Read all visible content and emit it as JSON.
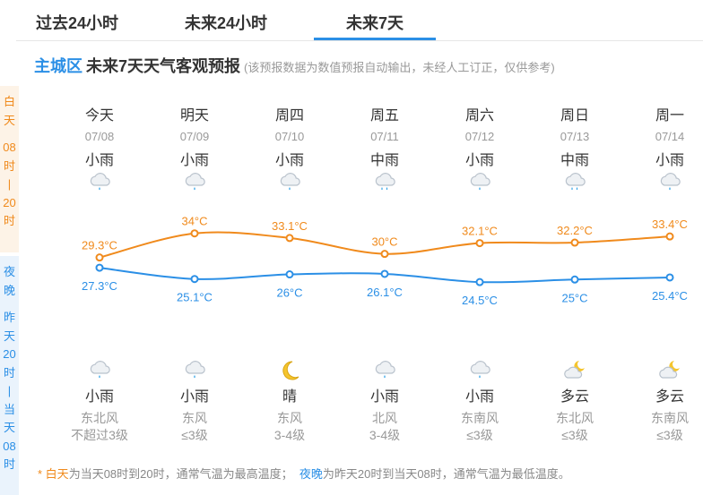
{
  "tabs": [
    {
      "label": "过去24小时",
      "active": false
    },
    {
      "label": "未来24小时",
      "active": false
    },
    {
      "label": "未来7天",
      "active": true
    }
  ],
  "heading": {
    "place": "主城区",
    "title": "未来7天天气客观预报",
    "note": "(该预报数据为数值预报自动输出，未经人工订正，仅供参考)"
  },
  "side_day": [
    "白",
    "天",
    "",
    "08",
    "时",
    "|",
    "20",
    "时"
  ],
  "side_night": [
    "夜",
    "晚",
    "",
    "昨",
    "天",
    "20",
    "时",
    "|",
    "当",
    "天",
    "08",
    "时"
  ],
  "colors": {
    "day": "#f08a1c",
    "night": "#2b8fe6",
    "active_tab": "#2b8fe6"
  },
  "days": [
    {
      "name": "今天",
      "date": "07/08",
      "day_wx": "小雨",
      "day_icon": "light-rain-icon",
      "night_wx": "小雨",
      "night_icon": "light-rain-icon",
      "wind_dir": "东北风",
      "wind_level": "不超过3级"
    },
    {
      "name": "明天",
      "date": "07/09",
      "day_wx": "小雨",
      "day_icon": "light-rain-icon",
      "night_wx": "小雨",
      "night_icon": "light-rain-icon",
      "wind_dir": "东风",
      "wind_level": "≤3级"
    },
    {
      "name": "周四",
      "date": "07/10",
      "day_wx": "小雨",
      "day_icon": "light-rain-icon",
      "night_wx": "晴",
      "night_icon": "moon-icon",
      "wind_dir": "东风",
      "wind_level": "3-4级"
    },
    {
      "name": "周五",
      "date": "07/11",
      "day_wx": "中雨",
      "day_icon": "moderate-rain-icon",
      "night_wx": "小雨",
      "night_icon": "light-rain-icon",
      "wind_dir": "北风",
      "wind_level": "3-4级"
    },
    {
      "name": "周六",
      "date": "07/12",
      "day_wx": "小雨",
      "day_icon": "light-rain-icon",
      "night_wx": "小雨",
      "night_icon": "light-rain-icon",
      "wind_dir": "东南风",
      "wind_level": "≤3级"
    },
    {
      "name": "周日",
      "date": "07/13",
      "day_wx": "中雨",
      "day_icon": "moderate-rain-icon",
      "night_wx": "多云",
      "night_icon": "cloudy-night-icon",
      "wind_dir": "东北风",
      "wind_level": "≤3级"
    },
    {
      "name": "周一",
      "date": "07/14",
      "day_wx": "小雨",
      "day_icon": "light-rain-icon",
      "night_wx": "多云",
      "night_icon": "cloudy-night-icon",
      "wind_dir": "东南风",
      "wind_level": "≤3级"
    }
  ],
  "chart_data": {
    "type": "line",
    "x": [
      "07/08",
      "07/09",
      "07/10",
      "07/11",
      "07/12",
      "07/13",
      "07/14"
    ],
    "series": [
      {
        "values": [
          29.3,
          34,
          33.1,
          30,
          32.1,
          32.2,
          33.4
        ],
        "labels": [
          "29.3°C",
          "34°C",
          "33.1°C",
          "30°C",
          "32.1°C",
          "32.2°C",
          "33.4°C"
        ],
        "color": "#f08a1c"
      },
      {
        "values": [
          27.3,
          25.1,
          26,
          26.1,
          24.5,
          25,
          25.4
        ],
        "labels": [
          "27.3°C",
          "25.1°C",
          "26°C",
          "26.1°C",
          "24.5°C",
          "25°C",
          "25.4°C"
        ],
        "color": "#2b8fe6"
      }
    ],
    "ylim": [
      24,
      35
    ]
  },
  "footnote": {
    "star": "* ",
    "day_term": "白天",
    "day_desc": "为当天08时到20时，通常气温为最高温度；",
    "night_term": "夜晚",
    "night_desc": "为昨天20时到当天08时，通常气温为最低温度。"
  }
}
